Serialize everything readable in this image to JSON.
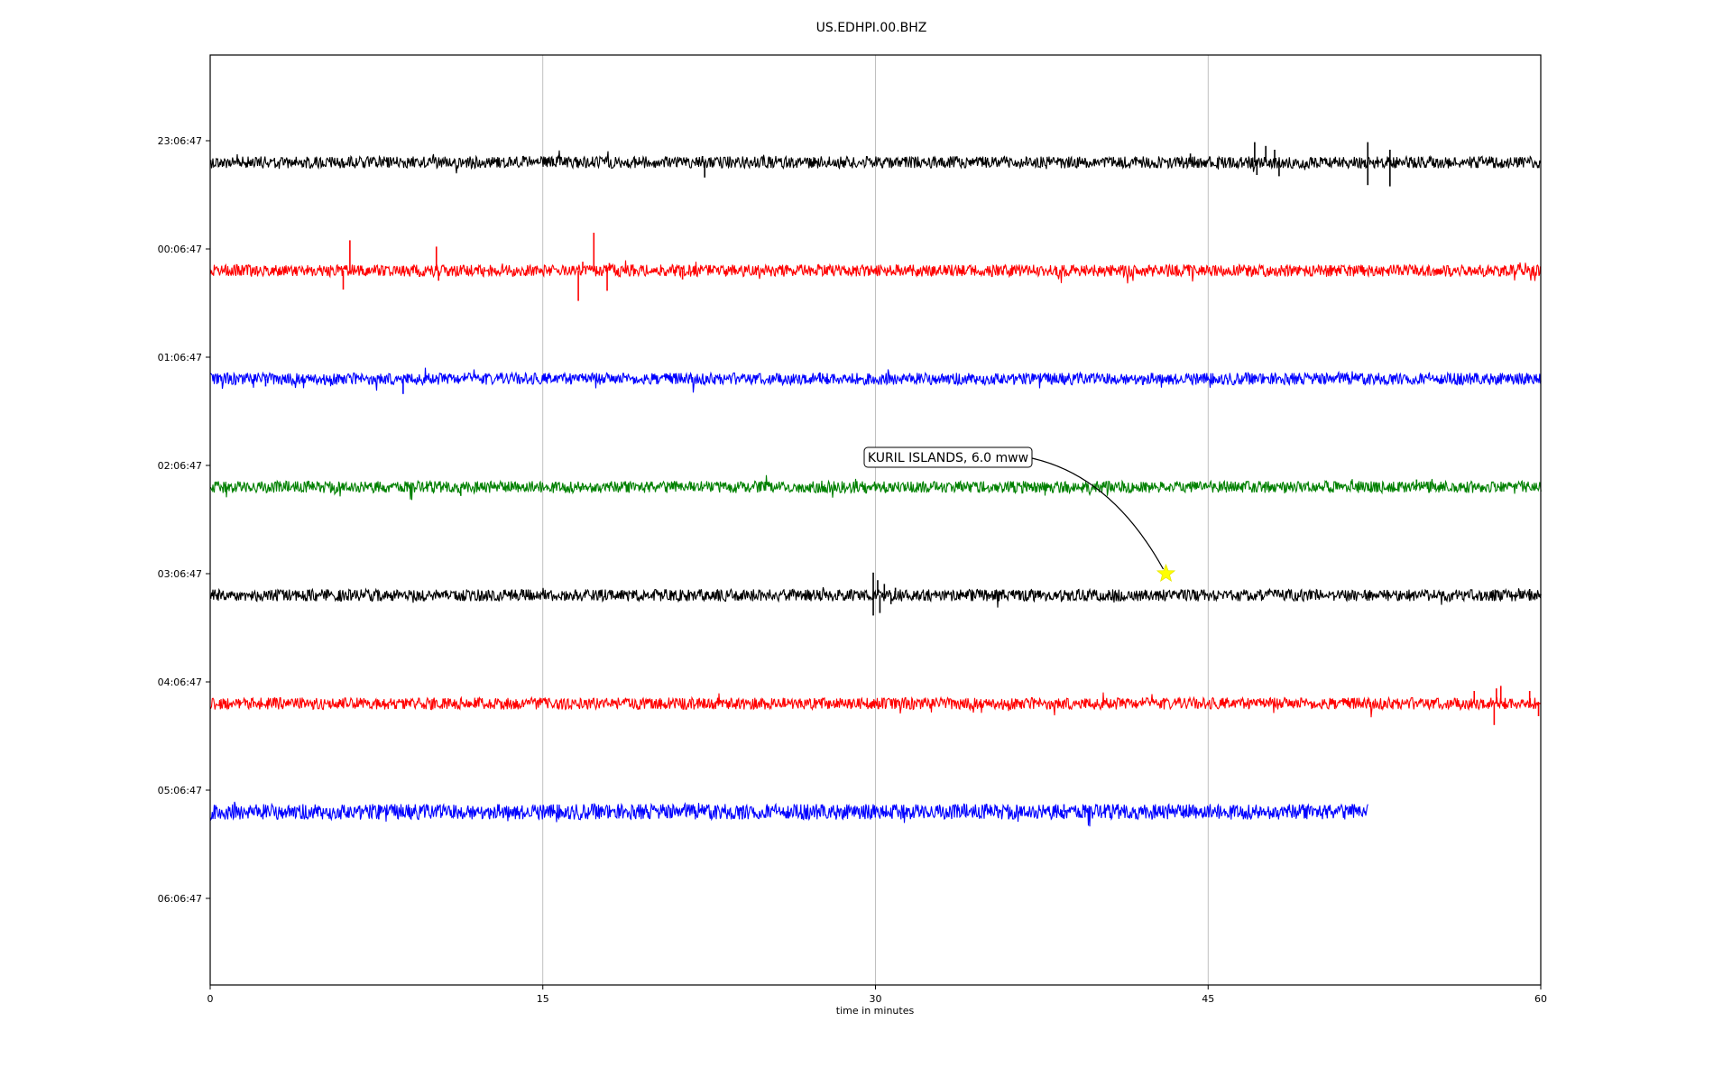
{
  "chart_data": {
    "type": "line",
    "title": "US.EDHPI.00.BHZ",
    "xlabel": "time in minutes",
    "ylabel": "",
    "xlim": [
      0,
      60
    ],
    "x_ticks": [
      0,
      15,
      30,
      45,
      60
    ],
    "x_tick_labels": [
      "0",
      "15",
      "30",
      "45",
      "60"
    ],
    "grid": "vertical",
    "row_labels": [
      "23:06:47",
      "00:06:47",
      "01:06:47",
      "02:06:47",
      "03:06:47",
      "04:06:47",
      "05:06:47",
      "06:06:47"
    ],
    "series": [
      {
        "row": 0,
        "color": "#000000",
        "x_start": 0,
        "x_end": 60,
        "noise": 1.0,
        "spikes": [
          [
            22.3,
            -1.2
          ],
          [
            22.2,
            0.5
          ],
          [
            44.2,
            0.7
          ],
          [
            47.1,
            1.6
          ],
          [
            47.2,
            -1.0
          ],
          [
            47.6,
            1.3
          ],
          [
            48.0,
            1.0
          ],
          [
            48.2,
            -1.1
          ],
          [
            52.2,
            1.6
          ],
          [
            52.2,
            -1.8
          ],
          [
            53.2,
            1.0
          ],
          [
            53.2,
            -1.9
          ]
        ]
      },
      {
        "row": 1,
        "color": "#ff0000",
        "x_start": 0,
        "x_end": 60,
        "noise": 1.0,
        "spikes": [
          [
            6.0,
            -1.5
          ],
          [
            6.3,
            2.4
          ],
          [
            10.2,
            1.9
          ],
          [
            10.3,
            -0.8
          ],
          [
            16.6,
            -2.4
          ],
          [
            16.8,
            0.7
          ],
          [
            17.3,
            3.0
          ],
          [
            17.9,
            -1.6
          ],
          [
            18.0,
            0.6
          ],
          [
            21.3,
            -0.7
          ]
        ]
      },
      {
        "row": 2,
        "color": "#0000ff",
        "x_start": 0,
        "x_end": 60,
        "noise": 1.0,
        "spikes": [
          [
            2.5,
            -0.6
          ],
          [
            8.7,
            -1.2
          ],
          [
            27.5,
            0.5
          ]
        ]
      },
      {
        "row": 3,
        "color": "#008000",
        "x_start": 0,
        "x_end": 60,
        "noise": 1.0,
        "spikes": [
          [
            11.3,
            -0.7
          ],
          [
            54.4,
            0.6
          ]
        ]
      },
      {
        "row": 4,
        "color": "#000000",
        "x_start": 0,
        "x_end": 60,
        "noise": 1.0,
        "spikes": [
          [
            29.9,
            1.8
          ],
          [
            29.9,
            -1.6
          ],
          [
            30.1,
            1.2
          ],
          [
            30.2,
            -1.4
          ],
          [
            30.4,
            0.9
          ],
          [
            30.7,
            -0.7
          ],
          [
            30.9,
            0.6
          ],
          [
            59.5,
            0.5
          ]
        ]
      },
      {
        "row": 5,
        "color": "#ff0000",
        "x_start": 0,
        "x_end": 60,
        "noise": 1.0,
        "spikes": [
          [
            57.0,
            1.0
          ],
          [
            57.9,
            -1.7
          ],
          [
            58.0,
            1.2
          ],
          [
            58.2,
            1.4
          ],
          [
            59.5,
            1.0
          ],
          [
            59.9,
            -1.0
          ]
        ]
      },
      {
        "row": 6,
        "color": "#0000ff",
        "x_start": 0,
        "x_end": 52.2,
        "noise": 1.3,
        "spikes": [
          [
            7.6,
            -0.6
          ],
          [
            24.0,
            -0.6
          ],
          [
            38.5,
            0.6
          ]
        ]
      }
    ],
    "annotation": {
      "text": "KURIL ISLANDS, 6.0 mww",
      "event_row": 4,
      "event_x": 43.1,
      "marker": "star",
      "marker_color": "#ffff00"
    }
  }
}
